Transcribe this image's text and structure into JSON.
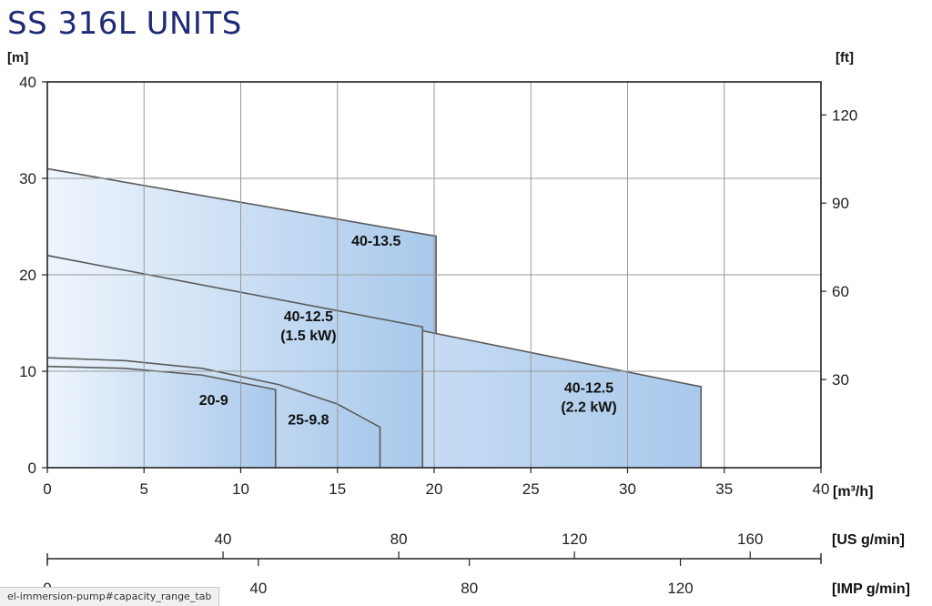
{
  "title": "SS 316L UNITS",
  "status_url": "el-immersion-pump#capacity_range_tab",
  "chart_data": {
    "type": "area",
    "xlabel": "[m³/h]",
    "ylabel": "[m]",
    "y2label": "[ft]",
    "xlim": [
      0,
      40
    ],
    "ylim": [
      0,
      40
    ],
    "x_ticks": [
      0,
      5,
      10,
      15,
      20,
      25,
      30,
      35,
      40
    ],
    "y_ticks": [
      0,
      10,
      20,
      30,
      40
    ],
    "y2_ticks": [
      30,
      60,
      90,
      120
    ],
    "grid": true,
    "us_axis": {
      "label": "[US g/min]",
      "ticks": [
        40,
        80,
        120,
        160
      ]
    },
    "imp_axis": {
      "label": "[IMP g/min]",
      "ticks": [
        0,
        40,
        80,
        120
      ]
    },
    "series": [
      {
        "name": "40-13.5",
        "label_lines": [
          "40-13.5"
        ],
        "points": [
          [
            0,
            31
          ],
          [
            20.1,
            24
          ]
        ],
        "end_x": 20.1,
        "label_at": [
          17,
          23
        ]
      },
      {
        "name": "40-12.5 (2.2 kW)",
        "label_lines": [
          "40-12.5",
          "(2.2 kW)"
        ],
        "points": [
          [
            0,
            22
          ],
          [
            33.8,
            8.4
          ]
        ],
        "end_x": 33.8,
        "label_at": [
          28,
          7.8
        ]
      },
      {
        "name": "40-12.5 (1.5 kW)",
        "label_lines": [
          "40-12.5",
          "(1.5 kW)"
        ],
        "points": [
          [
            0,
            22
          ],
          [
            19.4,
            14.6
          ]
        ],
        "end_x": 19.4,
        "label_at": [
          13.5,
          15.2
        ]
      },
      {
        "name": "25-9.8",
        "label_lines": [
          "25-9.8"
        ],
        "points": [
          [
            0,
            11.4
          ],
          [
            4,
            11.1
          ],
          [
            8,
            10.3
          ],
          [
            12,
            8.6
          ],
          [
            15,
            6.6
          ],
          [
            17.2,
            4.2
          ]
        ],
        "end_x": 17.2,
        "label_at": [
          13.5,
          4.5
        ]
      },
      {
        "name": "20-9",
        "label_lines": [
          "20-9"
        ],
        "points": [
          [
            0,
            10.5
          ],
          [
            4,
            10.3
          ],
          [
            8,
            9.6
          ],
          [
            11.8,
            8.1
          ]
        ],
        "end_x": 11.8,
        "label_at": [
          8.6,
          6.5
        ]
      }
    ]
  }
}
